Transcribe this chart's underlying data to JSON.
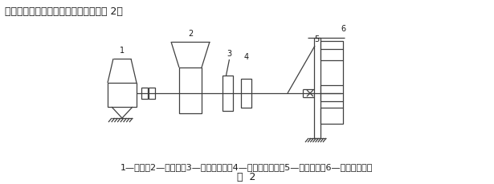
{
  "title_top": "离合器从动盘总成减震器试验台，见图 2。",
  "caption_line1": "1—电机；2—激震器；3—转矩传感器；4—角位移传感器；5—夹紧机构；6—离合器从动盘",
  "caption_line2": "图  2",
  "bg_color": "#ffffff",
  "line_color": "#404040",
  "text_color": "#1a1a1a",
  "font_size_top": 9.0,
  "font_size_caption": 8.0,
  "font_size_fig": 9.0,
  "font_size_label": 7.0
}
